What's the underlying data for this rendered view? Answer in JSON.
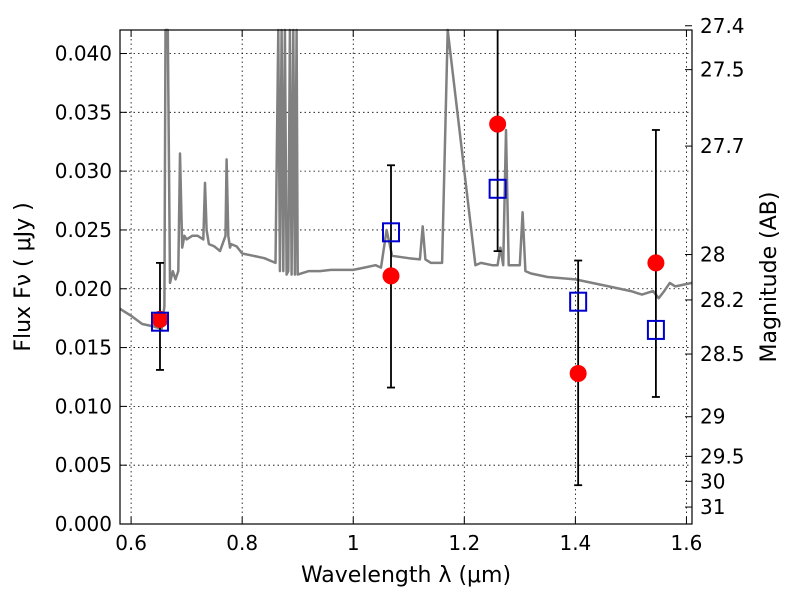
{
  "chart_data": {
    "type": "scatter",
    "title": "",
    "xlabel": "Wavelength  λ (μm)",
    "ylabel": "Flux  Fν  ( μJy )",
    "ylabel_right": "Magnitude (AB)",
    "xlim": [
      0.58,
      1.61
    ],
    "ylim": [
      0.0,
      0.042
    ],
    "grid": true,
    "legend": "none",
    "x_ticks": [
      {
        "value": 0.6,
        "label": "0.6"
      },
      {
        "value": 0.8,
        "label": "0.8"
      },
      {
        "value": 1.0,
        "label": "1"
      },
      {
        "value": 1.2,
        "label": "1.2"
      },
      {
        "value": 1.4,
        "label": "1.4"
      },
      {
        "value": 1.6,
        "label": "1.6"
      }
    ],
    "y_ticks": [
      {
        "value": 0.0,
        "label": "0.000"
      },
      {
        "value": 0.005,
        "label": "0.005"
      },
      {
        "value": 0.01,
        "label": "0.010"
      },
      {
        "value": 0.015,
        "label": "0.015"
      },
      {
        "value": 0.02,
        "label": "0.020"
      },
      {
        "value": 0.025,
        "label": "0.025"
      },
      {
        "value": 0.03,
        "label": "0.030"
      },
      {
        "value": 0.035,
        "label": "0.035"
      },
      {
        "value": 0.04,
        "label": "0.040"
      }
    ],
    "right_ticks": [
      {
        "flux": 0.04236,
        "label": "27.4"
      },
      {
        "flux": 0.03863,
        "label": "27.5"
      },
      {
        "flux": 0.03213,
        "label": "27.7"
      },
      {
        "flux": 0.02291,
        "label": "28"
      },
      {
        "flux": 0.01905,
        "label": "28.2"
      },
      {
        "flux": 0.01445,
        "label": "28.5"
      },
      {
        "flux": 0.00912,
        "label": "29"
      },
      {
        "flux": 0.00575,
        "label": "29.5"
      },
      {
        "flux": 0.00363,
        "label": "30"
      },
      {
        "flux": 0.00144,
        "label": "31"
      }
    ],
    "colors": {
      "model": "#808080",
      "observed": "#ff0000",
      "model_band": "#0000cc",
      "errorbar": "#000000",
      "grid": "#000000"
    },
    "series": [
      {
        "kind": "line",
        "color": "#808080",
        "x": [
          0.58,
          0.6,
          0.62,
          0.64,
          0.655,
          0.66,
          0.662,
          0.664,
          0.666,
          0.67,
          0.675,
          0.68,
          0.685,
          0.688,
          0.692,
          0.696,
          0.7,
          0.71,
          0.72,
          0.73,
          0.733,
          0.736,
          0.74,
          0.75,
          0.76,
          0.77,
          0.772,
          0.775,
          0.778,
          0.78,
          0.79,
          0.8,
          0.82,
          0.84,
          0.86,
          0.865,
          0.868,
          0.871,
          0.874,
          0.877,
          0.88,
          0.883,
          0.886,
          0.889,
          0.892,
          0.895,
          0.898,
          0.9,
          0.92,
          0.94,
          0.96,
          0.98,
          1.0,
          1.02,
          1.04,
          1.05,
          1.06,
          1.07,
          1.1,
          1.12,
          1.125,
          1.13,
          1.14,
          1.15,
          1.16,
          1.17,
          1.22,
          1.23,
          1.25,
          1.26,
          1.265,
          1.27,
          1.275,
          1.28,
          1.29,
          1.3,
          1.305,
          1.31,
          1.32,
          1.35,
          1.4,
          1.43,
          1.46,
          1.5,
          1.52,
          1.54,
          1.55,
          1.56,
          1.57,
          1.58,
          1.61
        ],
        "y": [
          0.0183,
          0.0177,
          0.017,
          0.0168,
          0.0166,
          0.0185,
          0.042,
          0.042,
          0.042,
          0.0205,
          0.0215,
          0.0208,
          0.0215,
          0.0315,
          0.0235,
          0.0245,
          0.0242,
          0.0245,
          0.0245,
          0.0242,
          0.029,
          0.025,
          0.0238,
          0.0236,
          0.0232,
          0.0245,
          0.031,
          0.0245,
          0.0235,
          0.0238,
          0.0236,
          0.023,
          0.0228,
          0.0226,
          0.0222,
          0.042,
          0.0215,
          0.042,
          0.0215,
          0.042,
          0.0212,
          0.0215,
          0.042,
          0.0212,
          0.042,
          0.0212,
          0.042,
          0.0212,
          0.0215,
          0.0215,
          0.0216,
          0.0216,
          0.0216,
          0.0218,
          0.022,
          0.0218,
          0.025,
          0.0228,
          0.0226,
          0.0225,
          0.0253,
          0.0225,
          0.0222,
          0.0222,
          0.0222,
          0.042,
          0.022,
          0.0222,
          0.022,
          0.022,
          0.0235,
          0.022,
          0.0335,
          0.022,
          0.022,
          0.022,
          0.0265,
          0.0215,
          0.0213,
          0.021,
          0.0208,
          0.0205,
          0.0202,
          0.0198,
          0.0195,
          0.0198,
          0.0192,
          0.0198,
          0.0205,
          0.0202,
          0.0205
        ]
      },
      {
        "kind": "points",
        "marker": "circle",
        "color": "#ff0000",
        "points": [
          {
            "x": 0.652,
            "y": 0.0174
          },
          {
            "x": 1.068,
            "y": 0.0211
          },
          {
            "x": 1.26,
            "y": 0.034
          },
          {
            "x": 1.405,
            "y": 0.0128
          },
          {
            "x": 1.545,
            "y": 0.0222
          }
        ]
      },
      {
        "kind": "points",
        "marker": "square",
        "color": "#0000cc",
        "points": [
          {
            "x": 0.652,
            "y": 0.0172
          },
          {
            "x": 1.068,
            "y": 0.0248
          },
          {
            "x": 1.26,
            "y": 0.0285
          },
          {
            "x": 1.405,
            "y": 0.0189
          },
          {
            "x": 1.545,
            "y": 0.0165
          }
        ]
      },
      {
        "kind": "errorbars",
        "color": "#000000",
        "bars": [
          {
            "x": 0.652,
            "low": 0.0131,
            "high": 0.0222
          },
          {
            "x": 1.068,
            "low": 0.0116,
            "high": 0.0305
          },
          {
            "x": 1.26,
            "low": 0.0232,
            "high": 0.042
          },
          {
            "x": 1.405,
            "low": 0.0033,
            "high": 0.0224
          },
          {
            "x": 1.545,
            "low": 0.0108,
            "high": 0.0335
          }
        ]
      }
    ]
  }
}
